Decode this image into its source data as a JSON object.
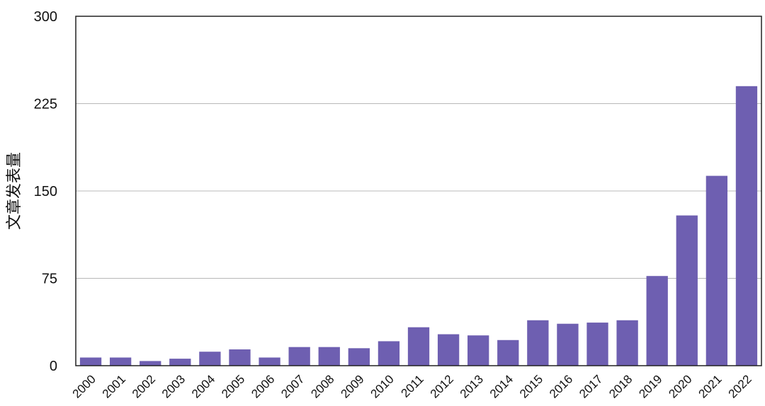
{
  "chart_data": {
    "type": "bar",
    "categories": [
      "2000",
      "2001",
      "2002",
      "2003",
      "2004",
      "2005",
      "2006",
      "2007",
      "2008",
      "2009",
      "2010",
      "2011",
      "2012",
      "2013",
      "2014",
      "2015",
      "2016",
      "2017",
      "2018",
      "2019",
      "2020",
      "2021",
      "2022"
    ],
    "values": [
      7,
      7,
      4,
      6,
      12,
      14,
      7,
      16,
      16,
      15,
      21,
      33,
      27,
      26,
      22,
      39,
      36,
      37,
      39,
      77,
      129,
      163,
      240
    ],
    "title": "",
    "xlabel": "",
    "ylabel": "文章发表量",
    "ylim": [
      0,
      300
    ],
    "yticks": [
      0,
      75,
      150,
      225,
      300
    ],
    "grid": true,
    "bar_color": "#6e5fb1",
    "legend": "none"
  }
}
